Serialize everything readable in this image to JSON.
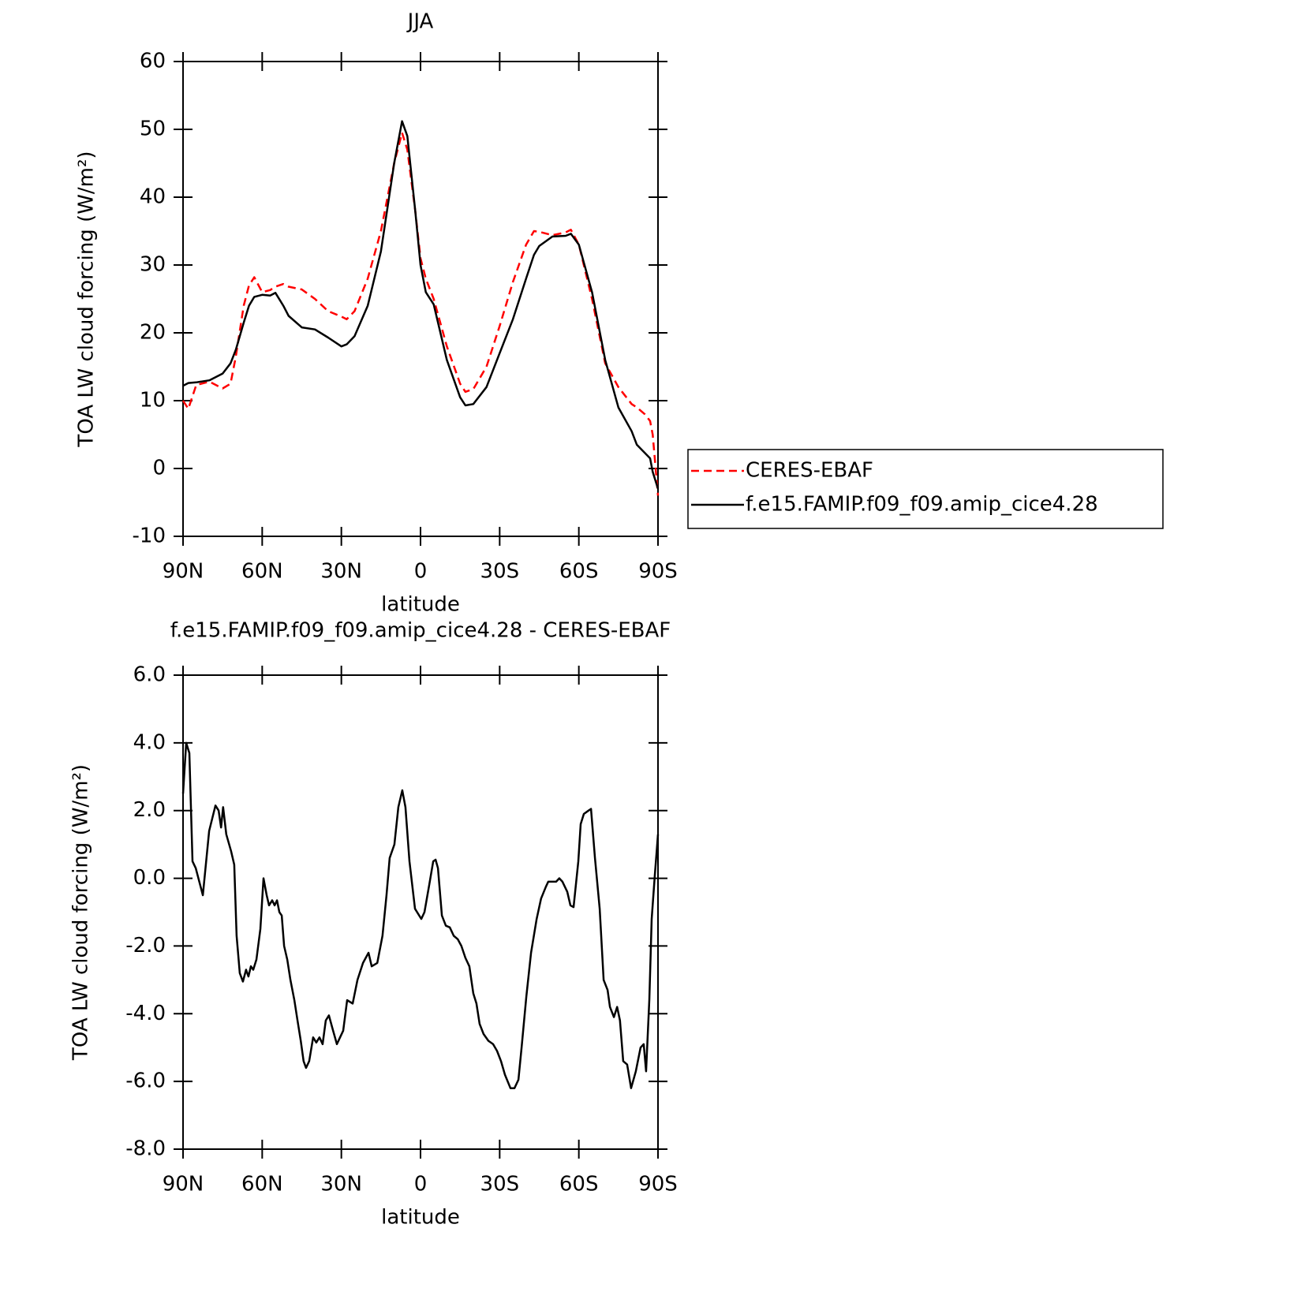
{
  "chart_data": [
    {
      "type": "line",
      "title": "JJA",
      "xlabel": "latitude",
      "ylabel": "TOA LW cloud forcing (W/m²)",
      "xlim": [
        90,
        -90
      ],
      "xticks": [
        {
          "value": 90,
          "label": "90N"
        },
        {
          "value": 60,
          "label": "60N"
        },
        {
          "value": 30,
          "label": "30N"
        },
        0,
        {
          "value": -30,
          "label": "30S"
        },
        {
          "value": -60,
          "label": "60S"
        },
        {
          "value": -90,
          "label": "90S"
        }
      ],
      "ylim": [
        -10,
        60
      ],
      "yticks": [
        -10,
        0,
        10,
        20,
        30,
        40,
        50,
        60
      ],
      "legend": "outside right",
      "x": [
        90,
        88,
        85,
        80,
        75,
        72,
        70,
        67,
        65,
        63,
        60,
        57,
        55,
        52,
        50,
        45,
        40,
        35,
        30,
        28,
        25,
        20,
        15,
        10,
        7,
        5,
        2,
        0,
        -2,
        -5,
        -10,
        -15,
        -17,
        -20,
        -25,
        -30,
        -35,
        -40,
        -43,
        -45,
        -50,
        -55,
        -57,
        -60,
        -65,
        -70,
        -75,
        -80,
        -82,
        -85,
        -87,
        -88,
        -90
      ],
      "series": [
        {
          "name": "CERES-EBAF",
          "color": "#ff0000",
          "line_style": "dashed",
          "values": [
            10,
            8.8,
            12.3,
            12.8,
            11.8,
            12.5,
            16.5,
            24,
            27,
            28.2,
            26,
            26.3,
            26.8,
            27.2,
            26.8,
            26.4,
            25,
            23.2,
            22.4,
            22,
            23.2,
            28,
            35,
            45,
            49.5,
            47,
            38,
            31,
            28,
            25,
            18,
            12.5,
            11.3,
            11.7,
            15,
            21,
            27.5,
            33,
            35,
            34.9,
            34.4,
            34.8,
            35.2,
            33,
            25,
            15.5,
            12,
            9.5,
            9,
            8,
            7,
            5,
            -4
          ]
        },
        {
          "name": "f.e15.FAMIP.f09_f09.amip_cice4.28",
          "color": "#000000",
          "line_style": "solid",
          "values": [
            12.2,
            12.6,
            12.7,
            13,
            14,
            15.5,
            17.5,
            21.5,
            24,
            25.3,
            25.6,
            25.5,
            25.9,
            24,
            22.5,
            20.8,
            20.5,
            19.3,
            18,
            18.3,
            19.5,
            24,
            32,
            45,
            51.2,
            49,
            38,
            30,
            26,
            24.2,
            16,
            10.5,
            9.3,
            9.5,
            12,
            17,
            22,
            28,
            31.5,
            32.8,
            34.2,
            34.3,
            34.6,
            33,
            26,
            16,
            9,
            5.5,
            3.5,
            2.3,
            1.5,
            -0.5,
            -3
          ]
        }
      ]
    },
    {
      "type": "line",
      "title": "f.e15.FAMIP.f09_f09.amip_cice4.28 - CERES-EBAF",
      "xlabel": "latitude",
      "ylabel": "TOA LW cloud forcing (W/m²)",
      "xlim": [
        90,
        -90
      ],
      "xticks": [
        {
          "value": 90,
          "label": "90N"
        },
        {
          "value": 60,
          "label": "60N"
        },
        {
          "value": 30,
          "label": "30N"
        },
        0,
        {
          "value": -30,
          "label": "30S"
        },
        {
          "value": -60,
          "label": "60S"
        },
        {
          "value": -90,
          "label": "90S"
        }
      ],
      "ylim": [
        -8,
        6
      ],
      "yticks": [
        {
          "value": -8,
          "label": "-8.0"
        },
        {
          "value": -6,
          "label": "-6.0"
        },
        {
          "value": -4,
          "label": "-4.0"
        },
        {
          "value": -2,
          "label": "-2.0"
        },
        {
          "value": 0,
          "label": "0.0"
        },
        {
          "value": 2,
          "label": "2.0"
        },
        {
          "value": 4,
          "label": "4.0"
        },
        {
          "value": 6,
          "label": "6.0"
        }
      ],
      "x": [
        90,
        88.8,
        87.6,
        86.4,
        85.2,
        82.5,
        80.1,
        77.7,
        76.5,
        75.6,
        74.8,
        73.6,
        71.8,
        70.6,
        69.7,
        68.5,
        67.3,
        66.1,
        65.2,
        64.3,
        63.4,
        62.2,
        60.7,
        59.5,
        58.3,
        57.4,
        56.2,
        55.3,
        54.4,
        53.5,
        52.6,
        51.7,
        50.5,
        49.3,
        47.8,
        46.6,
        45.4,
        44.3,
        43.4,
        42.2,
        40.7,
        39.5,
        38.3,
        37.1,
        35.9,
        34.7,
        33.5,
        31.7,
        30.5,
        29.3,
        27.8,
        25.7,
        23.9,
        21.8,
        19.7,
        18.5,
        16.4,
        14.4,
        12.9,
        11.7,
        9.9,
        8.4,
        6.9,
        5.7,
        4.2,
        2.1,
        -0.3,
        -1.5,
        -3.3,
        -4.8,
        -5.7,
        -6.6,
        -8.1,
        -9.6,
        -11.1,
        -12.6,
        -14.1,
        -15.5,
        -17,
        -18.5,
        -20,
        -21.2,
        -22.4,
        -23.9,
        -25.7,
        -27.5,
        -29,
        -30.5,
        -32,
        -34.1,
        -35.6,
        -37.1,
        -38.3,
        -40.1,
        -41.9,
        -44,
        -45.7,
        -47.5,
        -48.4,
        -49.9,
        -51.4,
        -52.6,
        -53.8,
        -55.6,
        -56.8,
        -58,
        -59.8,
        -60.7,
        -61.9,
        -63.7,
        -64.6,
        -66.1,
        -67.9,
        -69.4,
        -70.9,
        -71.8,
        -73.3,
        -74.5,
        -75.6,
        -76.8,
        -78.3,
        -79.8,
        -81.6,
        -83.4,
        -84.6,
        -85.5,
        -86.7,
        -87.6,
        -88.8,
        -90
      ],
      "series": [
        {
          "color": "#000000",
          "line_style": "solid",
          "values": [
            2.5,
            4,
            3.7,
            0.5,
            0.3,
            -0.5,
            1.4,
            2.15,
            2,
            1.5,
            2.1,
            1.3,
            0.8,
            0.4,
            -1.7,
            -2.8,
            -3.05,
            -2.7,
            -2.9,
            -2.6,
            -2.7,
            -2.4,
            -1.5,
            0,
            -0.5,
            -0.8,
            -0.65,
            -0.8,
            -0.65,
            -1,
            -1.1,
            -2,
            -2.4,
            -3,
            -3.6,
            -4.2,
            -4.8,
            -5.4,
            -5.6,
            -5.4,
            -4.7,
            -4.85,
            -4.7,
            -4.9,
            -4.2,
            -4.05,
            -4.4,
            -4.9,
            -4.7,
            -4.5,
            -3.6,
            -3.7,
            -3,
            -2.5,
            -2.2,
            -2.6,
            -2.5,
            -1.7,
            -0.5,
            0.6,
            1,
            2.1,
            2.6,
            2.1,
            0.5,
            -0.9,
            -1.2,
            -1,
            -0.2,
            0.5,
            0.55,
            0.3,
            -1.1,
            -1.4,
            -1.45,
            -1.7,
            -1.8,
            -2,
            -2.35,
            -2.6,
            -3.4,
            -3.7,
            -4.3,
            -4.6,
            -4.8,
            -4.9,
            -5.1,
            -5.4,
            -5.8,
            -6.2,
            -6.2,
            -5.95,
            -5,
            -3.5,
            -2.2,
            -1.2,
            -0.6,
            -0.25,
            -0.1,
            -0.1,
            -0.1,
            0,
            -0.1,
            -0.4,
            -0.8,
            -0.85,
            0.5,
            1.6,
            1.9,
            2,
            2.05,
            0.6,
            -0.9,
            -3,
            -3.3,
            -3.8,
            -4.1,
            -3.8,
            -4.2,
            -5.4,
            -5.5,
            -6.2,
            -5.7,
            -5,
            -4.9,
            -5.7,
            -3.6,
            -1.2,
            0.1,
            1.3
          ]
        }
      ]
    }
  ]
}
